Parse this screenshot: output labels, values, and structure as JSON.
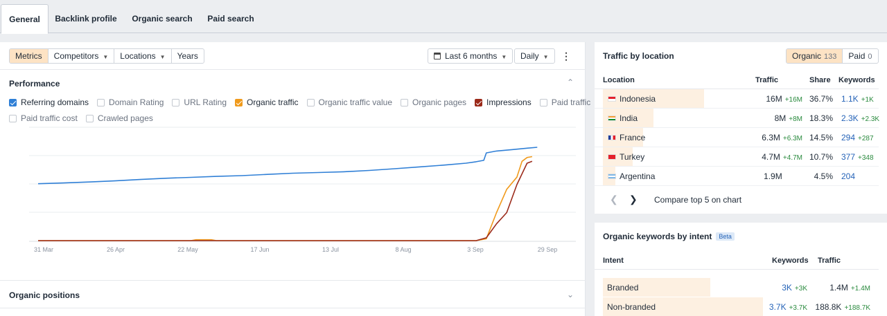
{
  "tabs": [
    {
      "label": "General",
      "active": true
    },
    {
      "label": "Backlink profile",
      "active": false
    },
    {
      "label": "Organic search",
      "active": false
    },
    {
      "label": "Paid search",
      "active": false
    }
  ],
  "toolbar": {
    "view_segments": [
      "Metrics",
      "Competitors",
      "Locations",
      "Years"
    ],
    "active_segment": "Metrics",
    "date_range": "Last 6 months",
    "granularity": "Daily"
  },
  "performance": {
    "title": "Performance",
    "metrics": [
      {
        "label": "Referring domains",
        "checked": true,
        "color": "#2f7fd6"
      },
      {
        "label": "Domain Rating",
        "checked": false
      },
      {
        "label": "URL Rating",
        "checked": false
      },
      {
        "label": "Organic traffic",
        "checked": true,
        "color": "#f09a1c"
      },
      {
        "label": "Organic traffic value",
        "checked": false
      },
      {
        "label": "Organic pages",
        "checked": false
      },
      {
        "label": "Impressions",
        "checked": true,
        "color": "#9b2a1a"
      },
      {
        "label": "Paid traffic",
        "checked": false
      },
      {
        "label": "Paid traffic cost",
        "checked": false
      },
      {
        "label": "Crawled pages",
        "checked": false
      }
    ]
  },
  "chart_data": {
    "type": "line",
    "x_ticks": [
      "31 Mar",
      "26 Apr",
      "22 May",
      "17 Jun",
      "13 Jul",
      "8 Aug",
      "3 Sep",
      "29 Sep"
    ],
    "grid": true,
    "series": [
      {
        "name": "Referring domains",
        "color": "#2f7fd6",
        "values": [
          [
            0,
            0.61
          ],
          [
            0.05,
            0.618
          ],
          [
            0.1,
            0.628
          ],
          [
            0.15,
            0.64
          ],
          [
            0.2,
            0.655
          ],
          [
            0.25,
            0.668
          ],
          [
            0.3,
            0.678
          ],
          [
            0.35,
            0.688
          ],
          [
            0.4,
            0.696
          ],
          [
            0.45,
            0.71
          ],
          [
            0.5,
            0.722
          ],
          [
            0.55,
            0.73
          ],
          [
            0.6,
            0.738
          ],
          [
            0.65,
            0.752
          ],
          [
            0.7,
            0.77
          ],
          [
            0.75,
            0.79
          ],
          [
            0.8,
            0.81
          ],
          [
            0.84,
            0.83
          ],
          [
            0.86,
            0.845
          ],
          [
            0.875,
            0.86
          ],
          [
            0.88,
            0.94
          ],
          [
            0.9,
            0.96
          ],
          [
            0.93,
            0.975
          ],
          [
            0.96,
            0.99
          ],
          [
            0.98,
            1.0
          ]
        ]
      },
      {
        "name": "Organic traffic",
        "color": "#f09a1c",
        "values": [
          [
            0,
            0
          ],
          [
            0.3,
            0
          ],
          [
            0.31,
            0.01
          ],
          [
            0.34,
            0.01
          ],
          [
            0.35,
            0
          ],
          [
            0.86,
            0
          ],
          [
            0.88,
            0.02
          ],
          [
            0.9,
            0.3
          ],
          [
            0.92,
            0.55
          ],
          [
            0.94,
            0.68
          ],
          [
            0.95,
            0.85
          ],
          [
            0.96,
            0.89
          ],
          [
            0.97,
            0.9
          ]
        ]
      },
      {
        "name": "Impressions",
        "color": "#9b2a1a",
        "values": [
          [
            0,
            0
          ],
          [
            0.86,
            0
          ],
          [
            0.88,
            0.03
          ],
          [
            0.9,
            0.18
          ],
          [
            0.92,
            0.3
          ],
          [
            0.94,
            0.6
          ],
          [
            0.96,
            0.83
          ],
          [
            0.97,
            0.85
          ]
        ]
      }
    ]
  },
  "organic_positions": {
    "title": "Organic positions"
  },
  "traffic_by_location": {
    "title": "Traffic by location",
    "toggle": [
      {
        "label": "Organic",
        "count": "133",
        "active": true
      },
      {
        "label": "Paid",
        "count": "0",
        "active": false
      }
    ],
    "headers": {
      "location": "Location",
      "traffic": "Traffic",
      "share": "Share",
      "keywords": "Keywords"
    },
    "rows": [
      {
        "country": "Indonesia",
        "traffic": "16M",
        "traffic_delta": "+16M",
        "share": "36.7%",
        "share_value": 36.7,
        "keywords": "1.1K",
        "keywords_delta": "+1K"
      },
      {
        "country": "India",
        "traffic": "8M",
        "traffic_delta": "+8M",
        "share": "18.3%",
        "share_value": 18.3,
        "keywords": "2.3K",
        "keywords_delta": "+2.3K"
      },
      {
        "country": "France",
        "traffic": "6.3M",
        "traffic_delta": "+6.3M",
        "share": "14.5%",
        "share_value": 14.5,
        "keywords": "294",
        "keywords_delta": "+287"
      },
      {
        "country": "Turkey",
        "traffic": "4.7M",
        "traffic_delta": "+4.7M",
        "share": "10.7%",
        "share_value": 10.7,
        "keywords": "377",
        "keywords_delta": "+348"
      },
      {
        "country": "Argentina",
        "traffic": "1.9M",
        "traffic_delta": "",
        "share": "4.5%",
        "share_value": 4.5,
        "keywords": "204",
        "keywords_delta": ""
      }
    ],
    "compare_label": "Compare top 5 on chart"
  },
  "keywords_by_intent": {
    "title": "Organic keywords by intent",
    "badge": "Beta",
    "headers": {
      "intent": "Intent",
      "keywords": "Keywords",
      "traffic": "Traffic"
    },
    "rows": [
      {
        "intent": "Branded",
        "keywords": "3K",
        "keywords_delta": "+3K",
        "traffic": "1.4M",
        "traffic_delta": "+1.4M",
        "share_value": 37
      },
      {
        "intent": "Non-branded",
        "keywords": "3.7K",
        "keywords_delta": "+3.7K",
        "traffic": "188.8K",
        "traffic_delta": "+188.7K",
        "share_value": 55
      }
    ]
  }
}
